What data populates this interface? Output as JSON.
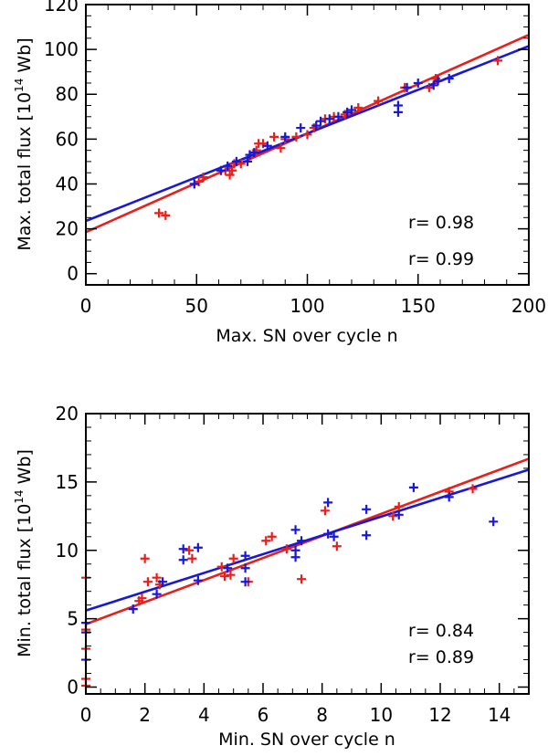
{
  "chart_data": [
    {
      "type": "scatter",
      "title": "",
      "xlabel": "Max. SN over cycle n",
      "ylabel": "Max. total flux [10",
      "ylabel_sup": "14",
      "ylabel_unit": " Wb]",
      "xlim": [
        0,
        200
      ],
      "ylim": [
        -5,
        120
      ],
      "xticks": [
        0,
        50,
        100,
        150,
        200
      ],
      "yticks": [
        0,
        20,
        40,
        60,
        80,
        100,
        120
      ],
      "x_minor": 10,
      "y_minor": 5,
      "series": [
        {
          "name": "red",
          "color": "#e8201c",
          "r_label": "r= 0.98",
          "fit": [
            [
              0,
              18.5
            ],
            [
              200,
              106.5
            ]
          ],
          "points": [
            [
              33,
              27
            ],
            [
              36,
              26
            ],
            [
              49,
              40
            ],
            [
              51,
              41
            ],
            [
              53,
              43
            ],
            [
              63,
              46
            ],
            [
              65,
              44
            ],
            [
              66,
              46
            ],
            [
              67,
              49
            ],
            [
              70,
              49
            ],
            [
              77,
              55
            ],
            [
              78,
              58
            ],
            [
              80,
              58
            ],
            [
              85,
              61
            ],
            [
              88,
              56
            ],
            [
              90,
              60
            ],
            [
              95,
              61
            ],
            [
              100,
              62
            ],
            [
              103,
              65
            ],
            [
              108,
              69
            ],
            [
              112,
              70
            ],
            [
              117,
              71
            ],
            [
              123,
              74
            ],
            [
              132,
              77
            ],
            [
              144,
              83
            ],
            [
              155,
              83
            ],
            [
              158,
              87
            ],
            [
              186,
              95
            ]
          ]
        },
        {
          "name": "blue",
          "color": "#1818d8",
          "r_label": "r= 0.99",
          "fit": [
            [
              0,
              23.5
            ],
            [
              200,
              101.5
            ]
          ],
          "points": [
            [
              49,
              40
            ],
            [
              61,
              46
            ],
            [
              64,
              48
            ],
            [
              68,
              50
            ],
            [
              73,
              50
            ],
            [
              74,
              53
            ],
            [
              76,
              54
            ],
            [
              82,
              57
            ],
            [
              90,
              61
            ],
            [
              97,
              65
            ],
            [
              104,
              66
            ],
            [
              106,
              68
            ],
            [
              110,
              69
            ],
            [
              114,
              70
            ],
            [
              118,
              72
            ],
            [
              120,
              73
            ],
            [
              141,
              72
            ],
            [
              141,
              75
            ],
            [
              145,
              83
            ],
            [
              150,
              85
            ],
            [
              157,
              84
            ],
            [
              159,
              86
            ],
            [
              164,
              87
            ]
          ]
        }
      ]
    },
    {
      "type": "scatter",
      "title": "",
      "xlabel": "Min. SN over cycle n",
      "ylabel": "Min. total flux [10",
      "ylabel_sup": "14",
      "ylabel_unit": " Wb]",
      "xlim": [
        0,
        15
      ],
      "ylim": [
        -0.5,
        20
      ],
      "xticks": [
        0,
        2,
        4,
        6,
        8,
        10,
        12,
        14
      ],
      "yticks": [
        0,
        5,
        10,
        15,
        20
      ],
      "x_minor": 0.5,
      "y_minor": 1,
      "series": [
        {
          "name": "red",
          "color": "#e8201c",
          "r_label": "r= 0.84",
          "fit": [
            [
              0,
              4.6
            ],
            [
              15,
              16.7
            ]
          ],
          "points": [
            [
              0,
              0.1
            ],
            [
              0,
              0.6
            ],
            [
              0,
              2.8
            ],
            [
              0,
              4.2
            ],
            [
              0,
              8
            ],
            [
              1.8,
              6.3
            ],
            [
              1.9,
              6.5
            ],
            [
              2,
              9.4
            ],
            [
              2.1,
              7.7
            ],
            [
              2.4,
              8
            ],
            [
              2.5,
              7.5
            ],
            [
              3.5,
              10
            ],
            [
              3.6,
              9.4
            ],
            [
              4.6,
              8.8
            ],
            [
              4.7,
              8.1
            ],
            [
              4.9,
              8.2
            ],
            [
              5,
              9.4
            ],
            [
              5.5,
              7.7
            ],
            [
              6.1,
              10.7
            ],
            [
              6.3,
              11
            ],
            [
              6.8,
              10.1
            ],
            [
              7.3,
              7.9
            ],
            [
              8.1,
              12.9
            ],
            [
              8.5,
              10.3
            ],
            [
              10.4,
              12.5
            ],
            [
              10.6,
              13.2
            ],
            [
              12.3,
              14.3
            ],
            [
              13.1,
              14.5
            ]
          ]
        },
        {
          "name": "blue",
          "color": "#1818d8",
          "r_label": "r= 0.89",
          "fit": [
            [
              0,
              5.6
            ],
            [
              15,
              15.9
            ]
          ],
          "points": [
            [
              0,
              2
            ],
            [
              0,
              4
            ],
            [
              0,
              4.7
            ],
            [
              1.6,
              5.7
            ],
            [
              2.4,
              6.8
            ],
            [
              2.6,
              7.7
            ],
            [
              3.3,
              10.1
            ],
            [
              3.3,
              9.3
            ],
            [
              3.8,
              10.2
            ],
            [
              3.8,
              7.8
            ],
            [
              4.8,
              8.7
            ],
            [
              5.4,
              9.6
            ],
            [
              5.4,
              8.7
            ],
            [
              5.4,
              7.7
            ],
            [
              7.1,
              11.5
            ],
            [
              7.1,
              10
            ],
            [
              7.1,
              9.5
            ],
            [
              7.3,
              10.7
            ],
            [
              8.2,
              13.5
            ],
            [
              8.2,
              11.2
            ],
            [
              8.4,
              11
            ],
            [
              9.5,
              13
            ],
            [
              9.5,
              11.1
            ],
            [
              10.6,
              12.6
            ],
            [
              11.1,
              14.6
            ],
            [
              12.3,
              13.9
            ],
            [
              13.8,
              12.1
            ]
          ]
        }
      ]
    }
  ]
}
